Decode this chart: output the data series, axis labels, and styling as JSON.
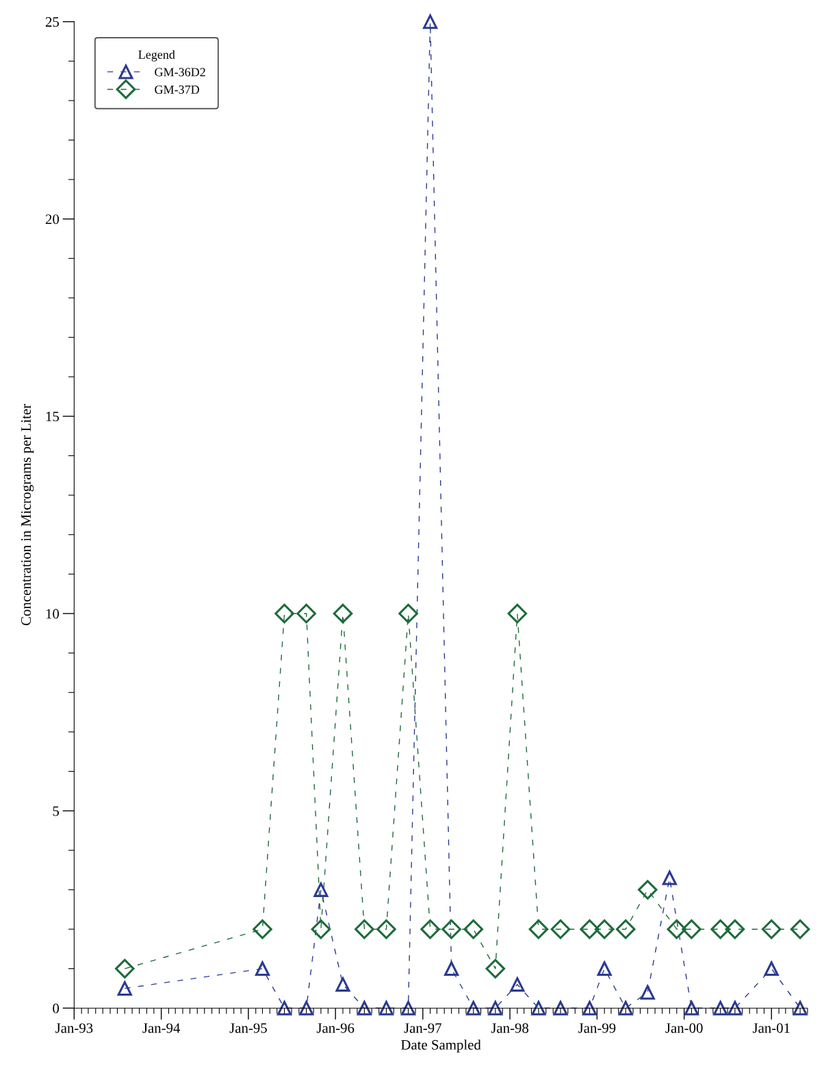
{
  "chart_data": {
    "type": "line",
    "xlabel": "Date Sampled",
    "ylabel": "Concentration in Micrograms per Liter",
    "legend_title": "Legend",
    "legend": "top left",
    "line_style": "dashed",
    "grid": false,
    "xlim": [
      "1993-01",
      "2001-06"
    ],
    "xticks": [
      {
        "value": "1993-01",
        "label": "Jan-93"
      },
      {
        "value": "1994-01",
        "label": "Jan-94"
      },
      {
        "value": "1995-01",
        "label": "Jan-95"
      },
      {
        "value": "1996-01",
        "label": "Jan-96"
      },
      {
        "value": "1997-01",
        "label": "Jan-97"
      },
      {
        "value": "1998-01",
        "label": "Jan-98"
      },
      {
        "value": "1999-01",
        "label": "Jan-99"
      },
      {
        "value": "2000-01",
        "label": "Jan-00"
      },
      {
        "value": "2001-01",
        "label": "Jan-01"
      }
    ],
    "ylim": [
      0,
      25
    ],
    "yticks": [
      0,
      5,
      10,
      15,
      20,
      25
    ],
    "series": [
      {
        "name": "GM-36D2",
        "color": "#2b3990",
        "marker": "triangle",
        "x": [
          "1993-08",
          "1995-03",
          "1995-06",
          "1995-09",
          "1995-11",
          "1996-02",
          "1996-05",
          "1996-08",
          "1996-11",
          "1997-02",
          "1997-05",
          "1997-08",
          "1997-11",
          "1998-02",
          "1998-05",
          "1998-08",
          "1998-12",
          "1999-02",
          "1999-05",
          "1999-08",
          "1999-11",
          "2000-02",
          "2000-06",
          "2000-08",
          "2001-01",
          "2001-05"
        ],
        "values": [
          0.5,
          1,
          0,
          0,
          3,
          0.6,
          0,
          0,
          0,
          25,
          1,
          0,
          0,
          0.6,
          0,
          0,
          0,
          1,
          0,
          0.4,
          3.3,
          0,
          0,
          0,
          1,
          0
        ]
      },
      {
        "name": "GM-37D",
        "color": "#1e6b3a",
        "marker": "diamond",
        "x": [
          "1993-08",
          "1995-03",
          "1995-06",
          "1995-09",
          "1995-11",
          "1996-02",
          "1996-05",
          "1996-08",
          "1996-11",
          "1997-02",
          "1997-05",
          "1997-08",
          "1997-11",
          "1998-02",
          "1998-05",
          "1998-08",
          "1998-12",
          "1999-02",
          "1999-05",
          "1999-08",
          "1999-12",
          "2000-02",
          "2000-06",
          "2000-08",
          "2001-01",
          "2001-05"
        ],
        "values": [
          1,
          2,
          10,
          10,
          2,
          10,
          2,
          2,
          10,
          2,
          2,
          2,
          1,
          10,
          2,
          2,
          2,
          2,
          2,
          3,
          2,
          2,
          2,
          2,
          2,
          2
        ]
      }
    ]
  }
}
